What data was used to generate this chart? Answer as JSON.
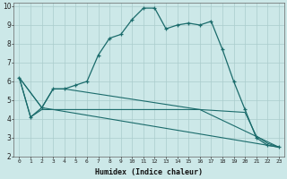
{
  "xlabel": "Humidex (Indice chaleur)",
  "background_color": "#cce8e8",
  "grid_color": "#aacccc",
  "line_color": "#1a6b6b",
  "xlim": [
    -0.5,
    23.5
  ],
  "ylim": [
    2,
    10.2
  ],
  "yticks": [
    2,
    3,
    4,
    5,
    6,
    7,
    8,
    9,
    10
  ],
  "xticks": [
    0,
    1,
    2,
    3,
    4,
    5,
    6,
    7,
    8,
    9,
    10,
    11,
    12,
    13,
    14,
    15,
    16,
    17,
    18,
    19,
    20,
    21,
    22,
    23
  ],
  "series1_x": [
    0,
    1,
    2,
    3,
    4,
    5,
    6,
    7,
    8,
    9,
    10,
    11,
    12,
    13,
    14,
    15,
    16,
    17,
    18,
    19,
    20,
    21,
    22,
    23
  ],
  "series1_y": [
    6.2,
    4.1,
    4.6,
    5.6,
    5.6,
    5.8,
    6.0,
    7.4,
    8.3,
    8.5,
    9.3,
    9.9,
    9.9,
    8.8,
    9.0,
    9.1,
    9.0,
    9.2,
    7.7,
    6.0,
    4.5,
    3.0,
    2.6,
    2.5
  ],
  "series2_x": [
    0,
    2,
    3,
    4,
    16,
    23
  ],
  "series2_y": [
    6.2,
    4.6,
    5.6,
    5.6,
    4.5,
    2.5
  ],
  "series3_x": [
    0,
    2,
    23
  ],
  "series3_y": [
    6.2,
    4.6,
    2.5
  ],
  "series4_x": [
    0,
    1,
    2,
    4,
    16,
    20,
    21,
    22,
    23
  ],
  "series4_y": [
    6.2,
    4.1,
    4.5,
    4.5,
    4.5,
    4.35,
    3.1,
    2.7,
    2.5
  ]
}
